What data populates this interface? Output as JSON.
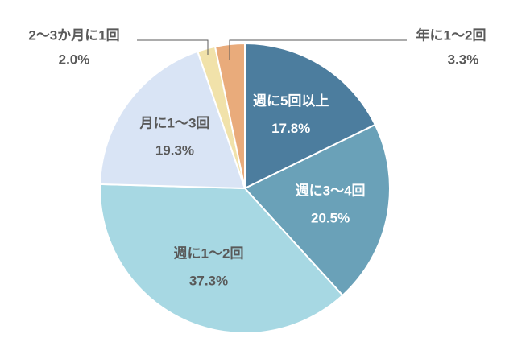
{
  "chart_data": {
    "type": "pie",
    "categories": [
      "週に5回以上",
      "週に3〜4回",
      "週に1〜2回",
      "月に1〜3回",
      "2〜3か月に1回",
      "年に1〜2回"
    ],
    "values": [
      17.8,
      20.5,
      37.3,
      19.3,
      2.0,
      3.3
    ],
    "value_labels": [
      "17.8%",
      "20.5%",
      "37.3%",
      "19.3%",
      "2.0%",
      "3.3%"
    ],
    "colors": [
      "#4c7d9e",
      "#6aa1b8",
      "#a7d8e3",
      "#d9e4f5",
      "#f1e2aa",
      "#e9ab7b"
    ]
  }
}
